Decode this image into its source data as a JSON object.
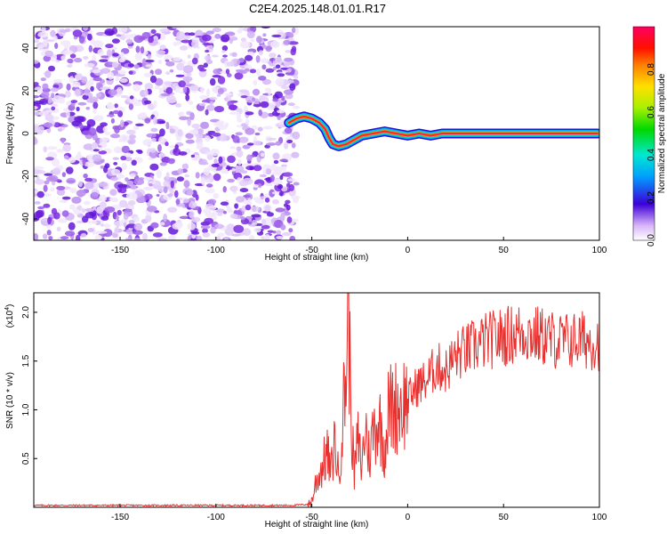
{
  "title": "C2E4.2025.148.01.01.R17",
  "chart_data": [
    {
      "type": "heatmap",
      "xlabel": "Height of straight line (km)",
      "ylabel": "Frequency (Hz)",
      "xlim": [
        -195,
        100
      ],
      "ylim": [
        -50,
        50
      ],
      "xticks": [
        -150,
        -100,
        -50,
        0,
        50,
        100
      ],
      "yticks": [
        -40,
        -20,
        0,
        20,
        40
      ],
      "noise_region": {
        "x": [
          -195,
          -60
        ],
        "y": [
          -50,
          50
        ]
      },
      "ridge": [
        {
          "x": -62,
          "y": 5
        },
        {
          "x": -58,
          "y": 7
        },
        {
          "x": -54,
          "y": 8
        },
        {
          "x": -50,
          "y": 7
        },
        {
          "x": -46,
          "y": 5
        },
        {
          "x": -43,
          "y": 2
        },
        {
          "x": -41,
          "y": -2
        },
        {
          "x": -39,
          "y": -5
        },
        {
          "x": -36,
          "y": -6
        },
        {
          "x": -32,
          "y": -5
        },
        {
          "x": -28,
          "y": -3
        },
        {
          "x": -24,
          "y": -1
        },
        {
          "x": -18,
          "y": 0
        },
        {
          "x": -12,
          "y": 1
        },
        {
          "x": -6,
          "y": 0
        },
        {
          "x": 0,
          "y": -1
        },
        {
          "x": 6,
          "y": 0
        },
        {
          "x": 12,
          "y": -1
        },
        {
          "x": 18,
          "y": 0
        },
        {
          "x": 30,
          "y": 0
        },
        {
          "x": 60,
          "y": 0
        },
        {
          "x": 99,
          "y": 0
        }
      ],
      "colorbar": {
        "label": "Normalized spectral amplitude",
        "range": [
          0,
          1
        ],
        "ticks": [
          "0.0",
          "0.2",
          "0.4",
          "0.6",
          "0.8"
        ]
      }
    },
    {
      "type": "line",
      "xlabel": "Height of straight line (km)",
      "ylabel": "SNR (10 * v/v)",
      "yscale_label": "(x10",
      "yscale_exp": "4",
      "yscale_close": ")",
      "xlim": [
        -195,
        100
      ],
      "ylim": [
        0,
        2.2
      ],
      "xticks": [
        -150,
        -100,
        -50,
        0,
        50,
        100
      ],
      "yticks": [
        "0.5",
        "1.0",
        "1.5",
        "2.0"
      ],
      "color": "#e8302e",
      "series": [
        {
          "x": [
            -195,
            -150,
            -100,
            -60,
            -52,
            -50,
            -48,
            -45,
            -42,
            -40,
            -38,
            -36,
            -34,
            -32,
            -31,
            -30,
            -29,
            -28,
            -26,
            -24,
            -22,
            -20,
            -18,
            -15,
            -12,
            -10,
            -5,
            0,
            5,
            10,
            15,
            20,
            25,
            30,
            40,
            50,
            60,
            70,
            80,
            90,
            100
          ],
          "y": [
            0.02,
            0.02,
            0.02,
            0.02,
            0.03,
            0.06,
            0.25,
            0.4,
            0.55,
            0.35,
            0.7,
            0.3,
            0.9,
            1.4,
            2.2,
            1.3,
            0.8,
            0.3,
            0.7,
            0.4,
            0.85,
            0.5,
            0.8,
            0.9,
            0.6,
            1.0,
            1.05,
            1.1,
            1.25,
            1.3,
            1.45,
            1.4,
            1.55,
            1.6,
            1.7,
            1.75,
            1.8,
            1.75,
            1.7,
            1.72,
            1.7
          ]
        }
      ]
    }
  ]
}
